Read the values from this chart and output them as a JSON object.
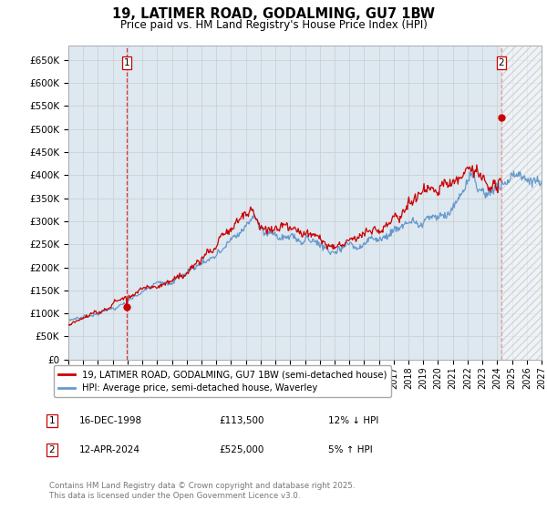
{
  "title": "19, LATIMER ROAD, GODALMING, GU7 1BW",
  "subtitle": "Price paid vs. HM Land Registry's House Price Index (HPI)",
  "ylim": [
    0,
    680000
  ],
  "yticks": [
    0,
    50000,
    100000,
    150000,
    200000,
    250000,
    300000,
    350000,
    400000,
    450000,
    500000,
    550000,
    600000,
    650000
  ],
  "ytick_labels": [
    "£0",
    "£50K",
    "£100K",
    "£150K",
    "£200K",
    "£250K",
    "£300K",
    "£350K",
    "£400K",
    "£450K",
    "£500K",
    "£550K",
    "£600K",
    "£650K"
  ],
  "sale1_year": 1998.96,
  "sale1_price": 113500,
  "sale1_label": "1",
  "sale2_year": 2024.28,
  "sale2_price": 525000,
  "sale2_label": "2",
  "red_line_color": "#cc0000",
  "blue_line_color": "#6699cc",
  "dashed_vline_color": "#cc0000",
  "grid_color": "#cccccc",
  "background_color": "#ffffff",
  "chart_bg_color": "#dde8f0",
  "legend_label_red": "19, LATIMER ROAD, GODALMING, GU7 1BW (semi-detached house)",
  "legend_label_blue": "HPI: Average price, semi-detached house, Waverley",
  "table_row1": [
    "1",
    "16-DEC-1998",
    "£113,500",
    "12% ↓ HPI"
  ],
  "table_row2": [
    "2",
    "12-APR-2024",
    "£525,000",
    "5% ↑ HPI"
  ],
  "footer": "Contains HM Land Registry data © Crown copyright and database right 2025.\nThis data is licensed under the Open Government Licence v3.0."
}
